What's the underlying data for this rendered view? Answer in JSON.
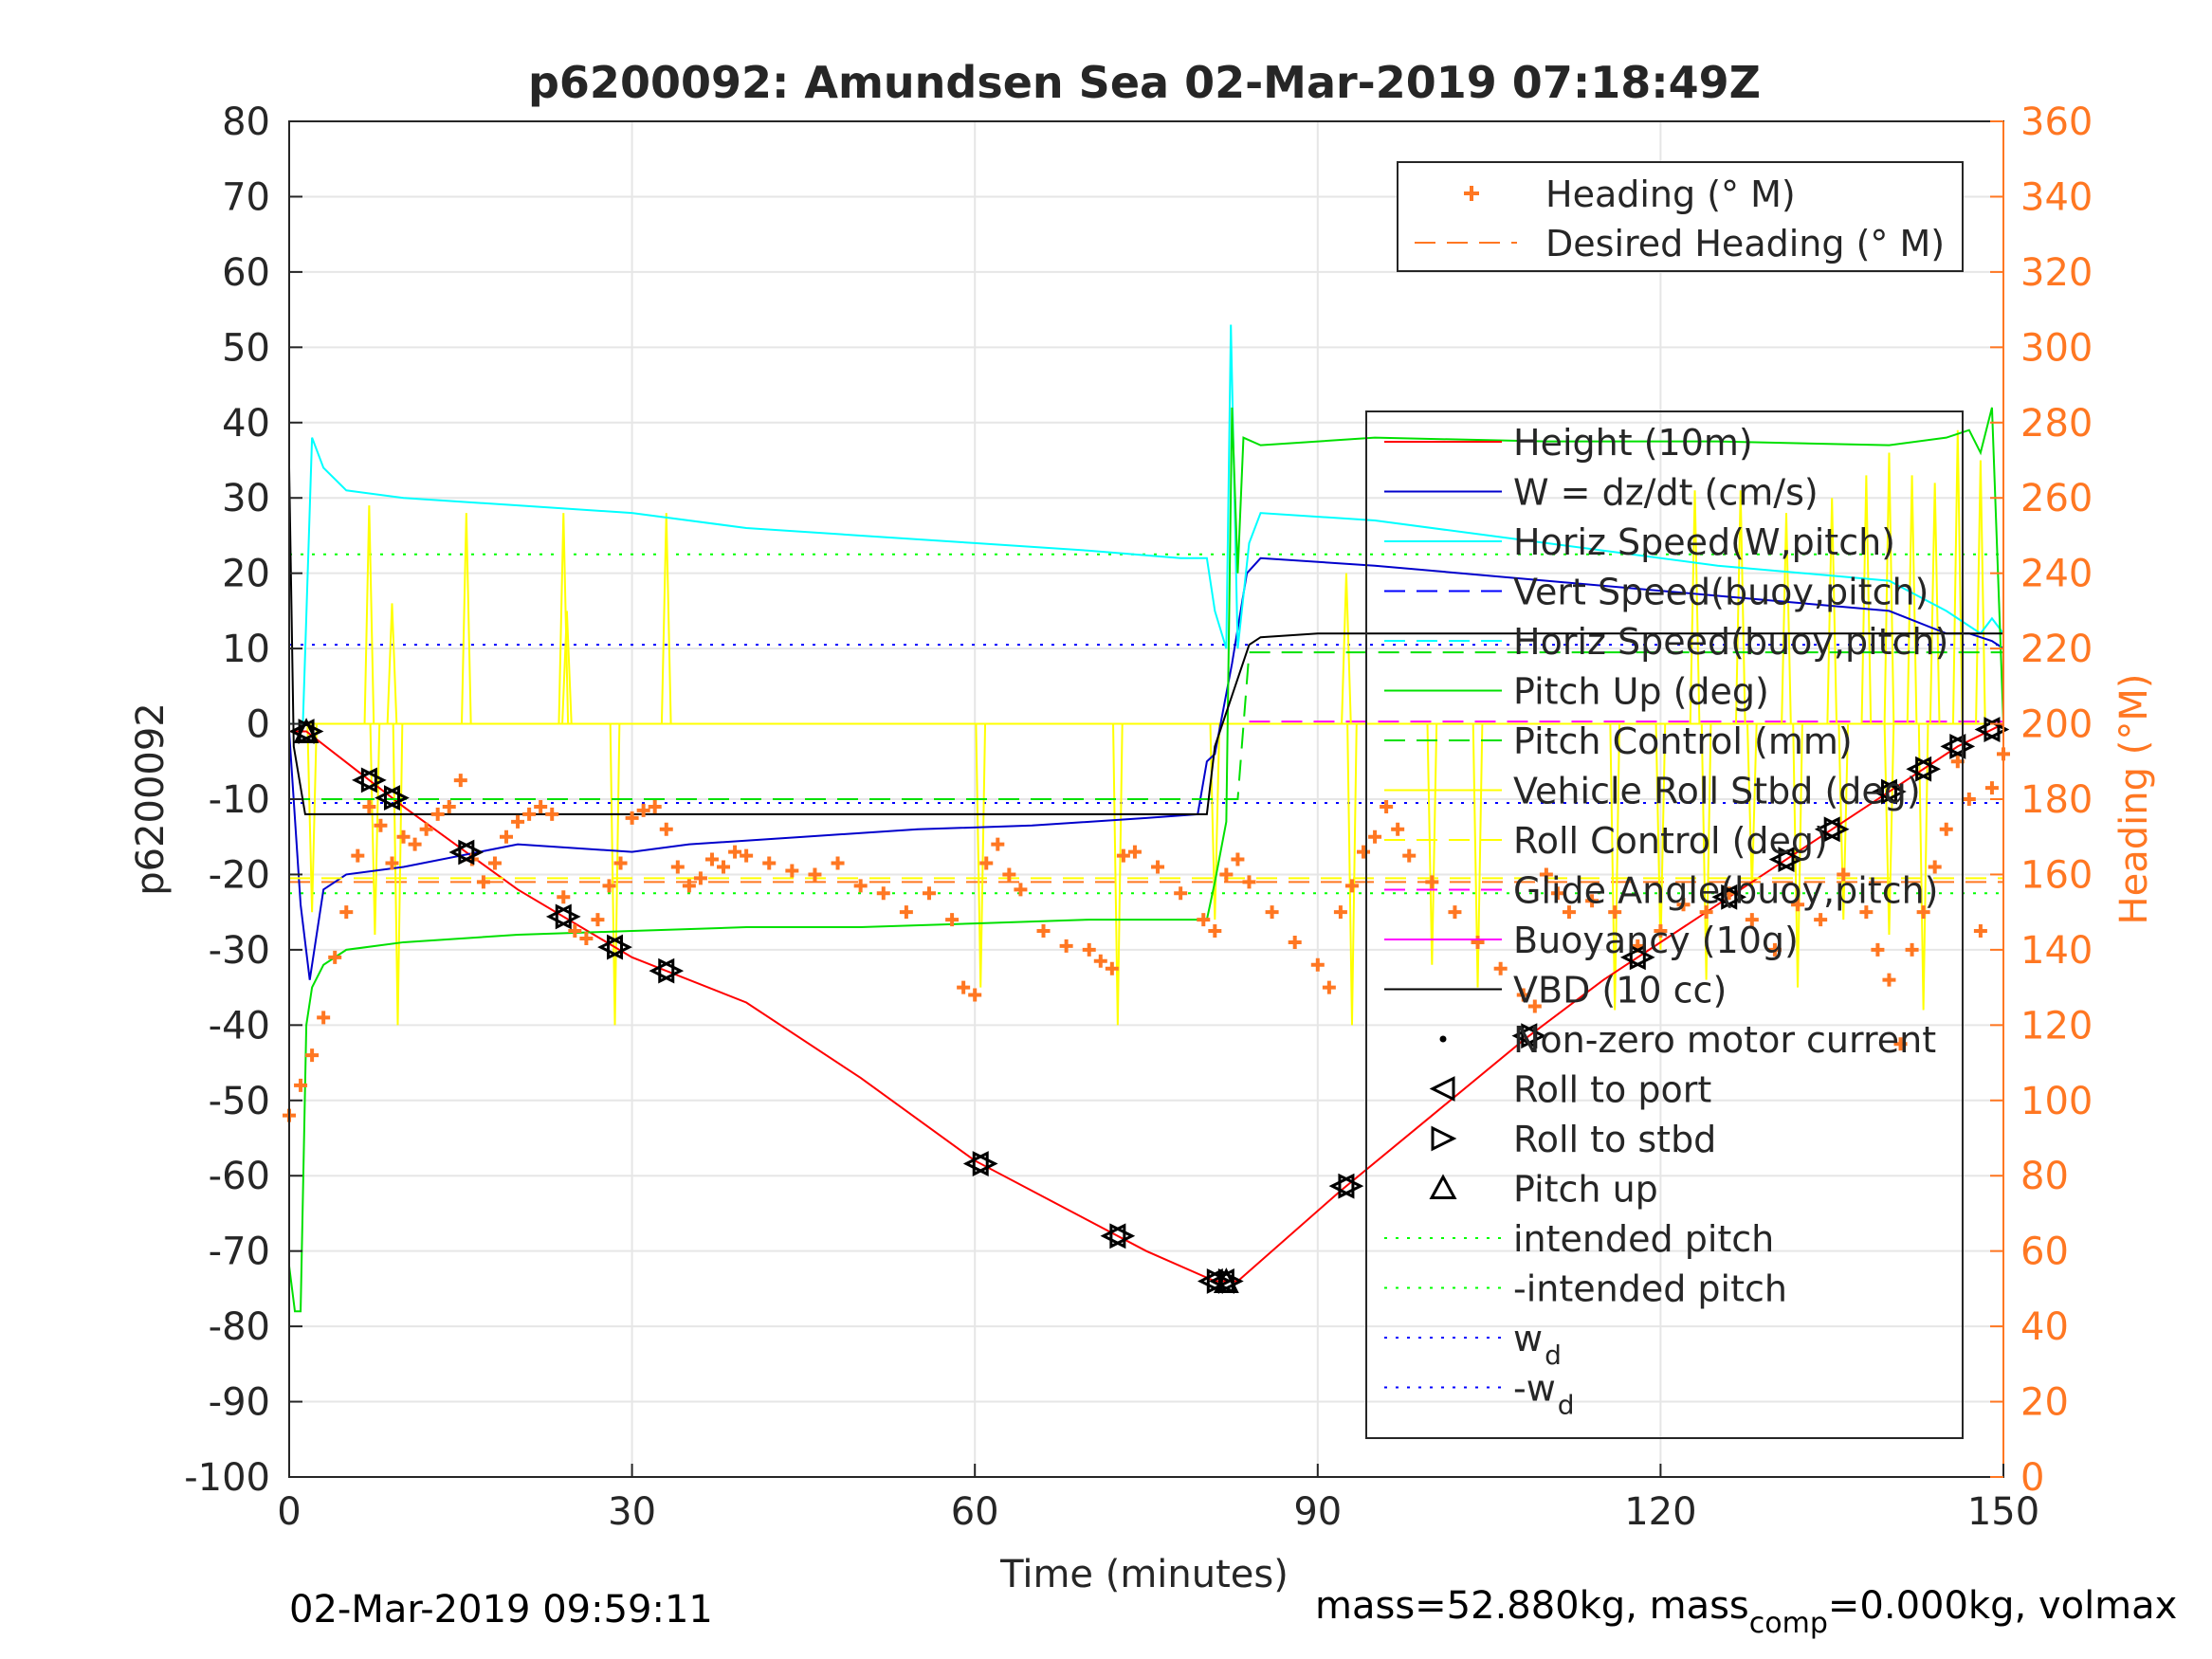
{
  "chart_data": {
    "type": "line",
    "title": "p6200092: Amundsen Sea 02-Mar-2019 07:18:49Z",
    "xlabel": "Time (minutes)",
    "ylabel": "p6200092",
    "y2label": "Heading (°M)",
    "xlim": [
      0,
      150
    ],
    "ylim": [
      -100,
      80
    ],
    "y2lim": [
      0,
      360
    ],
    "x_ticks": [
      0,
      30,
      60,
      90,
      120,
      150
    ],
    "y_ticks": [
      80,
      70,
      60,
      50,
      40,
      30,
      20,
      10,
      0,
      -10,
      -20,
      -30,
      -40,
      -50,
      -60,
      -70,
      -80,
      -90,
      -100
    ],
    "y2_ticks": [
      360,
      340,
      320,
      300,
      280,
      260,
      240,
      220,
      200,
      180,
      160,
      140,
      120,
      100,
      80,
      60,
      40,
      20,
      0
    ],
    "grid": true,
    "colors": {
      "heading": "#ff7722",
      "right_axis": "#ff7722",
      "height": "#ff0000",
      "w": "#0000cc",
      "horiz_speed": "#00ffff",
      "vert_speed_buoy": "#0000ff",
      "horiz_speed_buoy": "#00ffff",
      "pitch_up": "#00e000",
      "pitch_control": "#00e000",
      "roll": "#ffff00",
      "roll_control": "#ffff00",
      "glide_angle": "#ff00ff",
      "buoyancy": "#ff00ff",
      "vbd": "#000000",
      "intended_pitch": "#00ff00",
      "wd": "#0000ff"
    },
    "legend_top": {
      "placement": "top-right",
      "entries": [
        {
          "label": "Heading (° M)",
          "style": "plus",
          "color": "#ff7722"
        },
        {
          "label": "Desired Heading (° M)",
          "style": "dashed",
          "color": "#ff7722"
        }
      ]
    },
    "legend_main": {
      "placement": "right",
      "entries": [
        {
          "label": "Height (10m)",
          "style": "solid",
          "color": "#ff0000"
        },
        {
          "label": "W = dz/dt (cm/s)",
          "style": "solid",
          "color": "#0000cc"
        },
        {
          "label": "Horiz Speed(W,pitch)",
          "style": "solid",
          "color": "#00ffff"
        },
        {
          "label": "Vert Speed(buoy,pitch)",
          "style": "dashed",
          "color": "#0000ff"
        },
        {
          "label": "Horiz Speed(buoy,pitch)",
          "style": "dashed",
          "color": "#00ffff"
        },
        {
          "label": "Pitch Up (deg)",
          "style": "solid",
          "color": "#00e000"
        },
        {
          "label": "Pitch Control (mm)",
          "style": "dashed",
          "color": "#00e000"
        },
        {
          "label": "Vehicle Roll Stbd (deg)",
          "style": "solid",
          "color": "#ffff00"
        },
        {
          "label": "Roll Control (deg)",
          "style": "dashed",
          "color": "#ffff00"
        },
        {
          "label": "Glide Angle(buoy,pitch)",
          "style": "dashed",
          "color": "#ff00ff"
        },
        {
          "label": "Buoyancy (10g)",
          "style": "solid",
          "color": "#ff00ff"
        },
        {
          "label": "VBD (10 cc)",
          "style": "solid",
          "color": "#000000"
        },
        {
          "label": "Non-zero motor current",
          "style": "dot",
          "color": "#000000"
        },
        {
          "label": "Roll to port",
          "style": "tri-left",
          "color": "#000000"
        },
        {
          "label": "Roll to stbd",
          "style": "tri-right",
          "color": "#000000"
        },
        {
          "label": "Pitch up",
          "style": "tri-up",
          "color": "#000000"
        },
        {
          "label": "intended pitch",
          "style": "dotted",
          "color": "#00ff00"
        },
        {
          "label": "-intended pitch",
          "style": "dotted",
          "color": "#00ff00"
        },
        {
          "label": "w",
          "sub": "d",
          "style": "dotted",
          "color": "#0000ff"
        },
        {
          "label": "-w",
          "sub": "d",
          "style": "dotted",
          "color": "#0000ff"
        }
      ]
    },
    "series": [
      {
        "name": "Height (10m)",
        "x": [
          0,
          1.5,
          10,
          20,
          30,
          40,
          50,
          60,
          70,
          75,
          81,
          83,
          92,
          100,
          108,
          115,
          125,
          135,
          142,
          146,
          150
        ],
        "y": [
          -1,
          -1,
          -11,
          -22,
          -31,
          -37,
          -47,
          -58,
          -66,
          -70,
          -74,
          -74,
          -62,
          -52,
          -42,
          -34,
          -24,
          -14,
          -7,
          -3,
          0
        ]
      },
      {
        "name": "W = dz/dt (cm/s)",
        "x": [
          0,
          1,
          1.8,
          3,
          5,
          10,
          20,
          30,
          35,
          45,
          55,
          65,
          75,
          79.5,
          80.3,
          81,
          82.5,
          83.8,
          85,
          95,
          110,
          125,
          140,
          145,
          147,
          149,
          150
        ],
        "y": [
          -1,
          -24,
          -34,
          -22,
          -20,
          -19,
          -16,
          -17,
          -16,
          -15,
          -14,
          -13.5,
          -12.5,
          -12,
          -5,
          -4,
          8,
          20,
          22,
          21,
          19,
          17,
          15,
          12,
          12,
          11,
          10
        ]
      },
      {
        "name": "Horiz Speed(W,pitch)",
        "x": [
          0,
          1.2,
          2,
          3,
          5,
          10,
          20,
          30,
          40,
          50,
          60,
          70,
          78,
          80.3,
          81,
          82,
          82.4,
          83,
          84,
          85,
          95,
          110,
          125,
          140,
          145,
          148,
          149,
          150
        ],
        "y": [
          0,
          0,
          38,
          34,
          31,
          30,
          29,
          28,
          26,
          25,
          24,
          23,
          22,
          22,
          15,
          10,
          53,
          10,
          24,
          28,
          27,
          24,
          21,
          19,
          15,
          12,
          14,
          12
        ]
      },
      {
        "name": "Pitch Up (deg)",
        "x": [
          0,
          0.5,
          1,
          1.5,
          2,
          3,
          5,
          10,
          20,
          30,
          40,
          50,
          60,
          70,
          78,
          80.3,
          81,
          82,
          82.5,
          83,
          83.5,
          85,
          95,
          110,
          125,
          140,
          145,
          147,
          148,
          149,
          150
        ],
        "y": [
          -72,
          -78,
          -78,
          -40,
          -35,
          -32,
          -30,
          -29,
          -28,
          -27.5,
          -27,
          -27,
          -26.5,
          -26,
          -26,
          -26,
          -21,
          -13,
          42,
          20,
          38,
          37,
          38,
          37.5,
          37.5,
          37,
          38,
          39,
          36,
          42,
          0
        ]
      },
      {
        "name": "Pitch Control (mm)",
        "x": [
          0,
          1.5,
          83,
          84,
          150
        ],
        "y": [
          -10,
          -10,
          -10,
          9.5,
          9.5
        ]
      },
      {
        "name": "VBD (10 cc)",
        "x": [
          0,
          0.4,
          1.4,
          80.3,
          81,
          84,
          85,
          90,
          150
        ],
        "y": [
          34,
          -3,
          -12,
          -12,
          -3,
          10.5,
          11.5,
          12,
          12
        ]
      },
      {
        "name": "Roll Control (deg)",
        "x": [
          0,
          150
        ],
        "y": [
          -20.5,
          -20.5
        ]
      }
    ],
    "roll_spikes": {
      "up": [
        [
          7,
          29
        ],
        [
          9,
          16
        ],
        [
          15.5,
          28
        ],
        [
          24,
          28
        ],
        [
          24.3,
          15
        ],
        [
          33,
          28
        ],
        [
          92.5,
          20
        ],
        [
          123,
          31
        ],
        [
          127,
          31
        ],
        [
          131,
          28
        ],
        [
          135,
          30
        ],
        [
          138,
          33
        ],
        [
          140,
          36
        ],
        [
          142,
          33
        ],
        [
          144,
          32
        ],
        [
          146,
          39
        ],
        [
          148,
          35
        ]
      ],
      "down": [
        [
          2,
          -25
        ],
        [
          7.5,
          -28
        ],
        [
          9.5,
          -40
        ],
        [
          28.5,
          -40
        ],
        [
          60.5,
          -35
        ],
        [
          72.5,
          -40
        ],
        [
          81,
          -26
        ],
        [
          93,
          -40
        ],
        [
          100,
          -32
        ],
        [
          104,
          -35
        ],
        [
          116,
          -38
        ],
        [
          120,
          -30
        ],
        [
          124,
          -34
        ],
        [
          128,
          -22
        ],
        [
          132,
          -35
        ],
        [
          136,
          -26
        ],
        [
          140,
          -28
        ],
        [
          143,
          -38
        ]
      ]
    },
    "heading_points": {
      "x": [
        0,
        1,
        2,
        3,
        4,
        5,
        6,
        7,
        8,
        9,
        10,
        11,
        12,
        13,
        14,
        15,
        16,
        17,
        18,
        19,
        20,
        21,
        22,
        23,
        24,
        25,
        26,
        27,
        28,
        29,
        30,
        31,
        32,
        33,
        34,
        35,
        36,
        37,
        38,
        39,
        40,
        42,
        44,
        46,
        48,
        50,
        52,
        54,
        56,
        58,
        59,
        60,
        61,
        62,
        63,
        64,
        66,
        68,
        70,
        71,
        72,
        73,
        74,
        76,
        78,
        80,
        81,
        82,
        83,
        84,
        86,
        88,
        90,
        91,
        92,
        93,
        94,
        95,
        96,
        97,
        98,
        100,
        102,
        104,
        106,
        108,
        109,
        110,
        111,
        112,
        114,
        116,
        118,
        120,
        122,
        124,
        126,
        128,
        130,
        132,
        134,
        136,
        138,
        139,
        140,
        141,
        142,
        143,
        144,
        145,
        146,
        147,
        148,
        149,
        150
      ],
      "y": [
        96,
        104,
        112,
        122,
        138,
        150,
        165,
        178,
        173,
        163,
        170,
        168,
        172,
        176,
        178,
        185,
        164,
        158,
        163,
        170,
        174,
        176,
        178,
        176,
        154,
        145,
        143,
        148,
        157,
        163,
        175,
        177,
        178,
        172,
        162,
        157,
        159,
        164,
        162,
        166,
        165,
        163,
        161,
        160,
        163,
        157,
        155,
        150,
        155,
        148,
        130,
        128,
        163,
        168,
        160,
        156,
        145,
        141,
        140,
        137,
        135,
        165,
        166,
        162,
        155,
        148,
        145,
        160,
        164,
        158,
        150,
        142,
        136,
        130,
        150,
        157,
        166,
        170,
        178,
        172,
        165,
        158,
        150,
        142,
        135,
        128,
        125,
        160,
        155,
        150,
        153,
        150,
        141,
        145,
        152,
        150,
        155,
        148,
        140,
        152,
        148,
        160,
        150,
        140,
        132,
        115,
        140,
        150,
        162,
        172,
        190,
        180,
        145,
        183,
        192
      ]
    }
  },
  "footer": {
    "timestamp": "02-Mar-2019 09:59:11",
    "mass_prefix": "mass=52.880kg, mass",
    "mass_sub": "comp",
    "mass_suffix": "=0.000kg, volmax"
  }
}
